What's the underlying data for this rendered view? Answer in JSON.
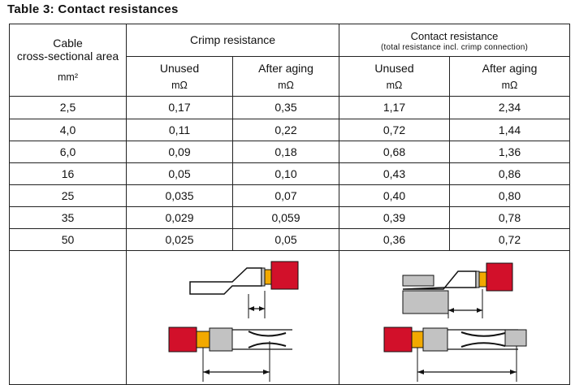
{
  "title": "Table 3: Contact resistances",
  "header": {
    "cable": {
      "line1": "Cable",
      "line2": "cross-sectional area",
      "unit": "mm²"
    },
    "crimp": {
      "label": "Crimp resistance"
    },
    "contact": {
      "label": "Contact resistance",
      "note": "(total resistance incl. crimp connection)"
    },
    "sub": [
      {
        "name": "Unused",
        "unit": "mΩ"
      },
      {
        "name": "After aging",
        "unit": "mΩ"
      },
      {
        "name": "Unused",
        "unit": "mΩ"
      },
      {
        "name": "After aging",
        "unit": "mΩ"
      }
    ]
  },
  "rows": [
    {
      "area": "2,5",
      "crimp_unused": "0,17",
      "crimp_aged": "0,35",
      "contact_unused": "1,17",
      "contact_aged": "2,34"
    },
    {
      "area": "4,0",
      "crimp_unused": "0,11",
      "crimp_aged": "0,22",
      "contact_unused": "0,72",
      "contact_aged": "1,44"
    },
    {
      "area": "6,0",
      "crimp_unused": "0,09",
      "crimp_aged": "0,18",
      "contact_unused": "0,68",
      "contact_aged": "1,36"
    },
    {
      "area": "16",
      "crimp_unused": "0,05",
      "crimp_aged": "0,10",
      "contact_unused": "0,43",
      "contact_aged": "0,86"
    },
    {
      "area": "25",
      "crimp_unused": "0,035",
      "crimp_aged": "0,07",
      "contact_unused": "0,40",
      "contact_aged": "0,80"
    },
    {
      "area": "35",
      "crimp_unused": "0,029",
      "crimp_aged": "0,059",
      "contact_unused": "0,39",
      "contact_aged": "0,78"
    },
    {
      "area": "50",
      "crimp_unused": "0,025",
      "crimp_aged": "0,05",
      "contact_unused": "0,36",
      "contact_aged": "0,72"
    }
  ],
  "colors": {
    "insulation": "#d2102a",
    "crimp_band": "#f2a900",
    "metal": "#c2c2c2",
    "line": "#111111"
  }
}
